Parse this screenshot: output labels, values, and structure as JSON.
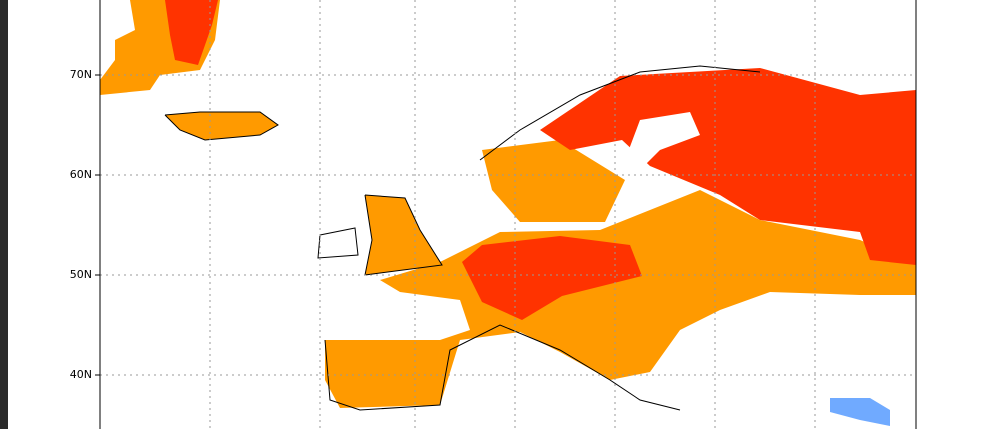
{
  "map": {
    "lat_labels": [
      "70N",
      "60N",
      "50N",
      "40N"
    ]
  }
}
